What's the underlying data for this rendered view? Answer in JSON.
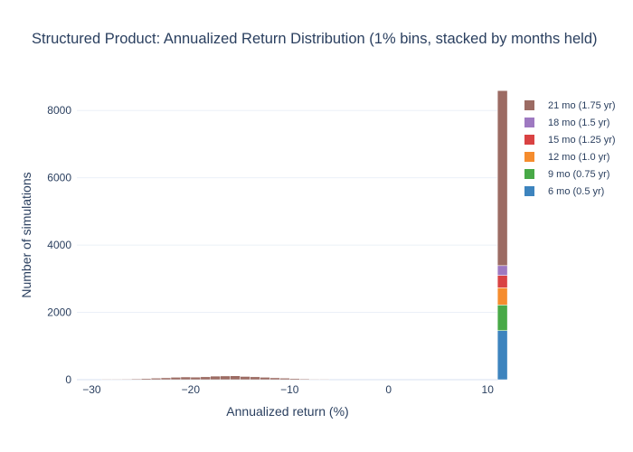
{
  "chart_data": {
    "type": "bar",
    "title": "Structured Product: Annualized Return Distribution (1% bins, stacked by months held)",
    "xlabel": "Annualized return (%)",
    "ylabel": "Number of simulations",
    "xlim": [
      -31.5,
      11.9
    ],
    "ylim": [
      0,
      9000
    ],
    "x_ticks": [
      -30,
      -20,
      -10,
      0,
      10
    ],
    "y_ticks": [
      0,
      2000,
      4000,
      6000,
      8000
    ],
    "x_tick_labels": [
      "−30",
      "−20",
      "−10",
      "0",
      "10"
    ],
    "y_tick_labels": [
      "0",
      "2000",
      "4000",
      "6000",
      "8000"
    ],
    "grid": true,
    "legend_position": "right",
    "bin_width": 1,
    "bin_starts": [
      -29,
      -28,
      -27,
      -26,
      -25,
      -24,
      -23,
      -22,
      -21,
      -20,
      -19,
      -18,
      -17,
      -16,
      -15,
      -14,
      -13,
      -12,
      -11,
      -10,
      -9,
      -8,
      -7,
      11
    ],
    "series": [
      {
        "name": "6 mo (0.5 yr)",
        "color": "#3d84be",
        "values": [
          0,
          0,
          0,
          0,
          0,
          0,
          0,
          0,
          0,
          0,
          0,
          0,
          0,
          0,
          0,
          0,
          0,
          0,
          0,
          0,
          0,
          0,
          0,
          1460
        ]
      },
      {
        "name": "9 mo (0.75 yr)",
        "color": "#48a947",
        "values": [
          0,
          0,
          0,
          0,
          0,
          0,
          0,
          0,
          0,
          0,
          0,
          0,
          0,
          0,
          0,
          0,
          0,
          0,
          0,
          0,
          0,
          0,
          0,
          760
        ]
      },
      {
        "name": "12 mo (1.0 yr)",
        "color": "#f58c2e",
        "values": [
          0,
          0,
          0,
          0,
          0,
          0,
          0,
          0,
          0,
          0,
          0,
          0,
          0,
          0,
          0,
          0,
          0,
          0,
          0,
          0,
          0,
          0,
          0,
          510
        ]
      },
      {
        "name": "15 mo (1.25 yr)",
        "color": "#d94243",
        "values": [
          0,
          0,
          0,
          0,
          0,
          0,
          0,
          0,
          0,
          0,
          0,
          0,
          0,
          0,
          0,
          0,
          0,
          0,
          0,
          0,
          0,
          0,
          0,
          370
        ]
      },
      {
        "name": "18 mo (1.5 yr)",
        "color": "#9e79c1",
        "values": [
          0,
          0,
          0,
          0,
          0,
          0,
          0,
          0,
          0,
          0,
          0,
          0,
          0,
          0,
          0,
          0,
          0,
          0,
          0,
          0,
          0,
          0,
          0,
          290
        ]
      },
      {
        "name": "21 mo (1.75 yr)",
        "color": "#9c6b63",
        "values": [
          8,
          12,
          18,
          25,
          35,
          45,
          55,
          70,
          80,
          75,
          85,
          105,
          110,
          115,
          95,
          85,
          70,
          55,
          45,
          35,
          25,
          15,
          8,
          5200
        ]
      }
    ]
  }
}
